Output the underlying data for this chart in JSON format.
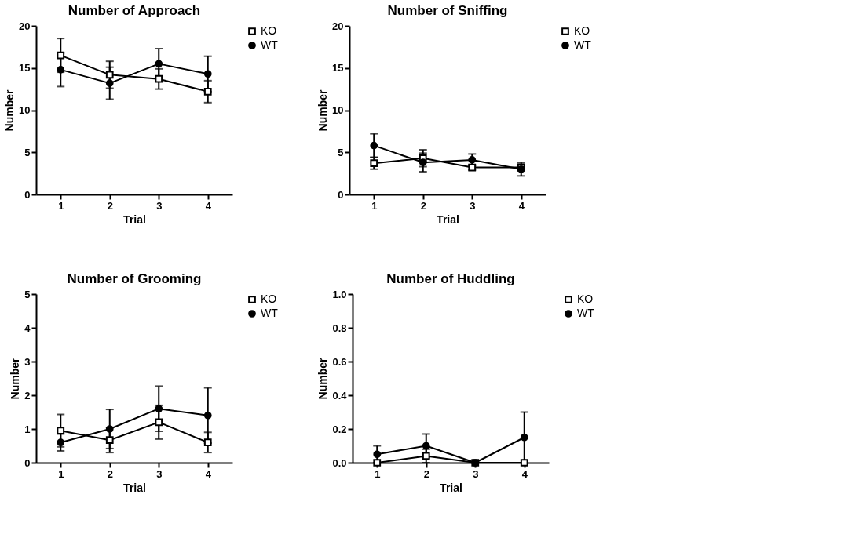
{
  "chart_data": [
    {
      "type": "line",
      "title": "Number of Approach",
      "xlabel": "Trial",
      "ylabel": "Number",
      "categories": [
        "1",
        "2",
        "3",
        "4"
      ],
      "ylim": [
        0,
        20
      ],
      "yticks": [
        0,
        5,
        10,
        15,
        20
      ],
      "legend": "top right",
      "grid": false,
      "line_style": "solid",
      "series": [
        {
          "name": "KO",
          "color": "#000000",
          "marker": "square",
          "values": [
            16.5,
            14.2,
            13.7,
            12.2
          ],
          "errors": [
            2.0,
            1.6,
            1.2,
            1.3
          ]
        },
        {
          "name": "WT",
          "color": "#000000",
          "marker": "circle",
          "values": [
            14.8,
            13.2,
            15.5,
            14.3
          ],
          "errors": [
            2.0,
            1.9,
            1.8,
            2.1
          ]
        }
      ]
    },
    {
      "type": "line",
      "title": "Number of Sniffing",
      "xlabel": "Trial",
      "ylabel": "Number",
      "categories": [
        "1",
        "2",
        "3",
        "4"
      ],
      "ylim": [
        0,
        20
      ],
      "yticks": [
        0,
        5,
        10,
        15,
        20
      ],
      "legend": "top right",
      "grid": false,
      "line_style": "solid",
      "series": [
        {
          "name": "KO",
          "color": "#000000",
          "marker": "square",
          "values": [
            3.7,
            4.3,
            3.2,
            3.2
          ],
          "errors": [
            0.7,
            1.0,
            0.3,
            0.4
          ]
        },
        {
          "name": "WT",
          "color": "#000000",
          "marker": "circle",
          "values": [
            5.8,
            3.8,
            4.1,
            3.0
          ],
          "errors": [
            1.4,
            1.1,
            0.7,
            0.8
          ]
        }
      ]
    },
    {
      "type": "line",
      "title": "Number of Grooming",
      "xlabel": "Trial",
      "ylabel": "Number",
      "categories": [
        "1",
        "2",
        "3",
        "4"
      ],
      "ylim": [
        0,
        5
      ],
      "yticks": [
        0,
        1,
        2,
        3,
        4,
        5
      ],
      "legend": "top right",
      "grid": false,
      "line_style": "solid",
      "series": [
        {
          "name": "KO",
          "color": "#000000",
          "marker": "square",
          "values": [
            0.95,
            0.67,
            1.2,
            0.6
          ],
          "errors": [
            0.48,
            0.37,
            0.5,
            0.3
          ]
        },
        {
          "name": "WT",
          "color": "#000000",
          "marker": "circle",
          "values": [
            0.6,
            1.0,
            1.6,
            1.4
          ],
          "errors": [
            0.25,
            0.58,
            0.67,
            0.82
          ]
        }
      ]
    },
    {
      "type": "line",
      "title": "Number of Huddling",
      "xlabel": "Trial",
      "ylabel": "Number",
      "categories": [
        "1",
        "2",
        "3",
        "4"
      ],
      "ylim": [
        0,
        1
      ],
      "yticks": [
        {
          "value": 0,
          "label": "0.0"
        },
        {
          "value": 0.2,
          "label": "0.2"
        },
        {
          "value": 0.4,
          "label": "0.4"
        },
        {
          "value": 0.6,
          "label": "0.6"
        },
        {
          "value": 0.8,
          "label": "0.8"
        },
        {
          "value": 1,
          "label": "1.0"
        }
      ],
      "legend": "top right",
      "grid": false,
      "line_style": "solid",
      "series": [
        {
          "name": "KO",
          "color": "#000000",
          "marker": "square",
          "values": [
            0,
            0.04,
            0,
            0
          ],
          "errors": [
            null,
            0.04,
            null,
            null
          ]
        },
        {
          "name": "WT",
          "color": "#000000",
          "marker": "circle",
          "values": [
            0.05,
            0.1,
            0,
            0.15
          ],
          "errors": [
            0.05,
            0.07,
            null,
            0.15
          ]
        }
      ]
    }
  ]
}
